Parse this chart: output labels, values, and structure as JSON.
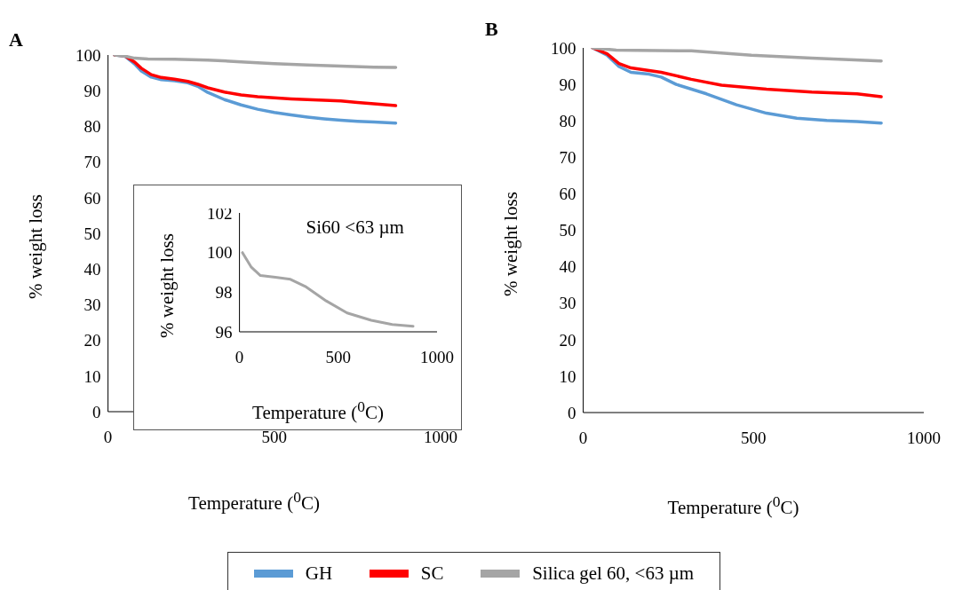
{
  "chart_data": [
    {
      "type": "line",
      "title": "A",
      "xlabel": "Temperature ($^{0}$C)",
      "ylabel": "% weight loss",
      "xlim": [
        0,
        1000
      ],
      "xticks": [
        0,
        500,
        1000
      ],
      "ylim": [
        0,
        100
      ],
      "yticks": [
        0,
        10,
        20,
        30,
        40,
        50,
        60,
        70,
        80,
        90,
        100
      ],
      "legend": "bottom",
      "line_style": "solid",
      "series": [
        {
          "name": "GH",
          "color": "#5b9bd5",
          "x": [
            20,
            50,
            80,
            100,
            130,
            160,
            200,
            240,
            270,
            300,
            350,
            400,
            450,
            500,
            550,
            600,
            650,
            700,
            750,
            800,
            865
          ],
          "values": [
            100,
            99.7,
            97.5,
            95.5,
            93.8,
            93.1,
            92.8,
            92.2,
            91.2,
            89.5,
            87.5,
            86,
            84.8,
            83.9,
            83.2,
            82.6,
            82.1,
            81.7,
            81.4,
            81.2,
            80.9
          ]
        },
        {
          "name": "SC",
          "color": "#ff0000",
          "x": [
            20,
            50,
            80,
            100,
            130,
            160,
            200,
            240,
            270,
            300,
            350,
            400,
            450,
            500,
            550,
            600,
            650,
            700,
            750,
            800,
            865
          ],
          "values": [
            100,
            99.8,
            98,
            96.3,
            94.5,
            93.7,
            93.2,
            92.6,
            91.8,
            90.8,
            89.6,
            88.8,
            88.3,
            88,
            87.7,
            87.5,
            87.3,
            87.1,
            86.7,
            86.3,
            85.8
          ]
        },
        {
          "name": "Silica gel 60, <63 µm",
          "color": "#a5a5a5",
          "x": [
            20,
            50,
            80,
            120,
            200,
            300,
            400,
            500,
            600,
            700,
            800,
            865
          ],
          "values": [
            100,
            99.7,
            99.1,
            98.9,
            98.8,
            98.6,
            98.1,
            97.6,
            97.2,
            96.9,
            96.6,
            96.5
          ]
        }
      ]
    },
    {
      "type": "line",
      "xlabel": "Temperature ($^{0}$C)",
      "ylabel": "% weight loss",
      "annotations": [
        "Si60 <63 µm"
      ],
      "xlim": [
        0,
        1000
      ],
      "xticks": [
        0,
        500,
        1000
      ],
      "ylim": [
        96,
        102
      ],
      "yticks": [
        96,
        98,
        100,
        102
      ],
      "line_style": "solid",
      "series": [
        {
          "color": "#a5a5a5",
          "x": [
            15,
            60,
            106,
            182,
            258,
            333,
            439,
            545,
            667,
            773,
            879
          ],
          "values": [
            100,
            99.26,
            98.84,
            98.75,
            98.65,
            98.29,
            97.56,
            96.95,
            96.58,
            96.37,
            96.28
          ]
        }
      ]
    },
    {
      "type": "line",
      "title": "B",
      "xlabel": "Temperature ($^{0}$C)",
      "ylabel": "% weight loss",
      "xlim": [
        0,
        1000
      ],
      "xticks": [
        0,
        500,
        1000
      ],
      "ylim": [
        0,
        100
      ],
      "yticks": [
        0,
        10,
        20,
        30,
        40,
        50,
        60,
        70,
        80,
        90,
        100
      ],
      "line_style": "solid",
      "series": [
        {
          "color": "#5b9bd5",
          "x": [
            28,
            70,
            105,
            140,
            193,
            229,
            273,
            362,
            450,
            538,
            627,
            715,
            804,
            875
          ],
          "values": [
            100,
            98,
            94.9,
            93.3,
            92.8,
            92,
            90,
            87.4,
            84.4,
            82.1,
            80.7,
            80.1,
            79.8,
            79.4
          ]
        },
        {
          "color": "#ff0000",
          "x": [
            28,
            70,
            105,
            140,
            229,
            317,
            406,
            538,
            671,
            804,
            875
          ],
          "values": [
            100,
            98.4,
            95.7,
            94.5,
            93.3,
            91.4,
            89.8,
            88.7,
            87.9,
            87.4,
            86.6
          ]
        },
        {
          "color": "#a5a5a5",
          "x": [
            28,
            97,
            317,
            494,
            671,
            875
          ],
          "values": [
            100,
            99.4,
            99.2,
            98,
            97.2,
            96.4
          ]
        }
      ]
    }
  ]
}
